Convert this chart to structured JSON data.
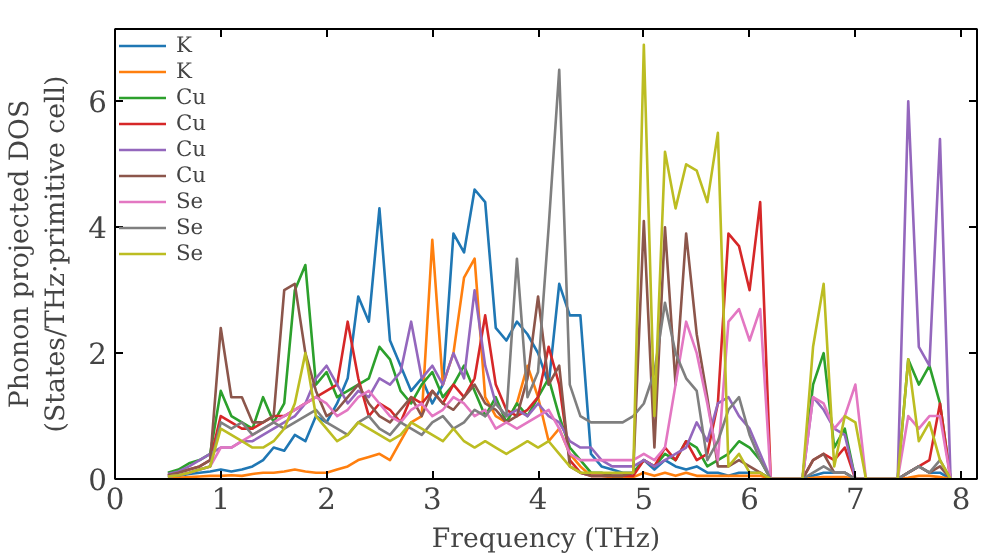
{
  "chart_data": {
    "type": "line",
    "xlabel": "Frequency (THz)",
    "ylabel": "Phonon projected DOS\n(States/THz·primitive cell)",
    "xlim": [
      0,
      8.15
    ],
    "ylim": [
      0,
      7.15
    ],
    "xticks": [
      0,
      1,
      2,
      3,
      4,
      5,
      6,
      7,
      8
    ],
    "yticks": [
      0,
      2,
      4,
      6
    ],
    "legend": "top left",
    "x": [
      0.5,
      0.6,
      0.7,
      0.8,
      0.9,
      1.0,
      1.1,
      1.2,
      1.3,
      1.4,
      1.5,
      1.6,
      1.7,
      1.8,
      1.9,
      2.0,
      2.1,
      2.2,
      2.3,
      2.4,
      2.5,
      2.6,
      2.7,
      2.8,
      2.9,
      3.0,
      3.1,
      3.2,
      3.3,
      3.4,
      3.5,
      3.6,
      3.7,
      3.8,
      3.9,
      4.0,
      4.1,
      4.2,
      4.3,
      4.4,
      4.5,
      4.6,
      4.7,
      4.8,
      4.9,
      5.0,
      5.1,
      5.2,
      5.3,
      5.4,
      5.5,
      5.6,
      5.7,
      5.8,
      5.9,
      6.0,
      6.1,
      6.2,
      6.3,
      6.4,
      6.5,
      6.6,
      6.7,
      6.8,
      6.9,
      7.0,
      7.1,
      7.2,
      7.3,
      7.4,
      7.5,
      7.6,
      7.7,
      7.8,
      7.9
    ],
    "series": [
      {
        "name": "K",
        "color": "#1f77b4",
        "values": [
          0.03,
          0.05,
          0.08,
          0.1,
          0.12,
          0.15,
          0.12,
          0.15,
          0.2,
          0.3,
          0.5,
          0.45,
          0.7,
          0.6,
          1.0,
          0.9,
          1.2,
          1.6,
          2.9,
          2.5,
          4.3,
          2.2,
          1.8,
          1.4,
          1.6,
          1.2,
          1.5,
          3.9,
          3.6,
          4.6,
          4.4,
          2.4,
          2.2,
          2.5,
          2.3,
          2.0,
          1.5,
          3.1,
          2.6,
          2.6,
          0.4,
          0.2,
          0.15,
          0.1,
          0.1,
          0.3,
          0.15,
          0.3,
          0.2,
          0.15,
          0.2,
          0.1,
          0.1,
          0.05,
          0.1,
          0.1,
          0.1,
          0,
          0,
          0,
          0,
          0.05,
          0.1,
          0.1,
          0.1,
          0,
          0,
          0,
          0,
          0,
          0.1,
          0.2,
          0.1,
          0.1,
          0
        ]
      },
      {
        "name": "K",
        "color": "#ff7f0e",
        "values": [
          0.02,
          0.02,
          0.03,
          0.04,
          0.05,
          0.05,
          0.06,
          0.05,
          0.08,
          0.1,
          0.1,
          0.12,
          0.15,
          0.12,
          0.1,
          0.1,
          0.15,
          0.2,
          0.3,
          0.35,
          0.4,
          0.3,
          0.6,
          0.9,
          1.0,
          3.8,
          1.5,
          2.0,
          3.2,
          3.5,
          1.3,
          1.0,
          0.9,
          1.2,
          1.8,
          1.3,
          0.6,
          0.8,
          0.4,
          0.2,
          0.05,
          0.05,
          0.03,
          0.03,
          0.03,
          0.1,
          0.05,
          0.1,
          0.05,
          0.1,
          0.05,
          0.05,
          0.05,
          0.05,
          0.05,
          0.05,
          0.05,
          0,
          0,
          0,
          0,
          0.02,
          0.03,
          0.03,
          0.03,
          0,
          0,
          0,
          0,
          0,
          0.02,
          0.05,
          0.05,
          0.03,
          0
        ]
      },
      {
        "name": "Cu",
        "color": "#2ca02c",
        "values": [
          0.1,
          0.15,
          0.25,
          0.3,
          0.4,
          1.4,
          1.0,
          0.9,
          0.8,
          1.3,
          0.9,
          1.2,
          3.0,
          3.4,
          1.5,
          1.7,
          1.3,
          1.4,
          1.5,
          1.6,
          2.1,
          1.9,
          1.4,
          1.2,
          1.5,
          1.7,
          1.3,
          1.5,
          1.8,
          1.4,
          1.0,
          1.3,
          0.9,
          1.2,
          1.0,
          1.3,
          1.6,
          1.0,
          0.5,
          0.3,
          0.1,
          0.1,
          0.05,
          0.05,
          0.1,
          0.3,
          0.2,
          0.4,
          0.3,
          0.6,
          0.5,
          0.2,
          0.3,
          0.4,
          0.6,
          0.5,
          0.3,
          0,
          0,
          0,
          0,
          1.5,
          2.0,
          0.5,
          0.8,
          0,
          0,
          0,
          0,
          0,
          1.9,
          1.5,
          1.8,
          1.2,
          0
        ]
      },
      {
        "name": "Cu",
        "color": "#d62728",
        "values": [
          0.06,
          0.1,
          0.15,
          0.2,
          0.3,
          1.0,
          0.9,
          0.8,
          0.8,
          0.9,
          1.0,
          1.0,
          1.1,
          1.2,
          1.3,
          1.4,
          1.5,
          2.5,
          1.6,
          1.0,
          1.2,
          1.1,
          0.9,
          1.3,
          1.2,
          1.4,
          1.2,
          1.5,
          1.3,
          1.6,
          2.6,
          1.5,
          1.1,
          1.0,
          1.1,
          1.3,
          2.1,
          1.5,
          0.3,
          0.1,
          0.05,
          0.05,
          0.05,
          0.05,
          0.05,
          0.3,
          0.2,
          0.5,
          0.3,
          0.6,
          0.3,
          0.4,
          1.2,
          3.9,
          3.7,
          3.0,
          4.4,
          0,
          0,
          0,
          0,
          0.3,
          0.4,
          0.3,
          0.5,
          0,
          0,
          0,
          0,
          0,
          0.1,
          0.2,
          0.3,
          1.2,
          0
        ]
      },
      {
        "name": "Cu",
        "color": "#9467bd",
        "values": [
          0.08,
          0.12,
          0.2,
          0.3,
          0.4,
          0.5,
          0.5,
          0.6,
          0.6,
          0.7,
          0.8,
          0.9,
          1.0,
          1.2,
          1.6,
          1.8,
          1.5,
          1.2,
          1.4,
          1.3,
          1.6,
          1.5,
          1.7,
          2.5,
          1.6,
          1.8,
          1.5,
          2.0,
          1.6,
          3.0,
          1.8,
          1.2,
          1.0,
          1.1,
          1.0,
          1.2,
          1.0,
          0.9,
          0.6,
          0.5,
          0.5,
          0.3,
          0.2,
          0.2,
          0.2,
          0.3,
          0.2,
          0.3,
          0.4,
          0.5,
          0.9,
          0.6,
          1.2,
          1.3,
          1.0,
          0.8,
          0.4,
          0,
          0,
          0,
          0,
          1.3,
          1.1,
          0.8,
          0.7,
          0,
          0,
          0,
          0,
          0,
          6.0,
          2.1,
          1.8,
          5.4,
          0
        ]
      },
      {
        "name": "Cu",
        "color": "#8c564b",
        "values": [
          0.06,
          0.1,
          0.15,
          0.2,
          0.3,
          2.4,
          1.3,
          1.3,
          0.9,
          0.9,
          1.0,
          3.0,
          3.1,
          2.0,
          1.4,
          1.0,
          1.1,
          1.3,
          1.5,
          1.2,
          1.0,
          0.9,
          1.1,
          1.3,
          1.0,
          1.4,
          1.2,
          1.1,
          1.3,
          1.5,
          1.2,
          1.1,
          0.9,
          1.0,
          1.6,
          2.9,
          1.5,
          1.8,
          0.2,
          0.1,
          0.05,
          0.05,
          0.05,
          0.05,
          0.1,
          4.1,
          0.5,
          4.0,
          1.5,
          3.9,
          2.3,
          1.3,
          0.2,
          0.2,
          0.3,
          0.2,
          0.1,
          0,
          0,
          0,
          0,
          0.3,
          0.4,
          0.1,
          0.1,
          0,
          0,
          0,
          0,
          0,
          0.1,
          0.2,
          0.1,
          0.2,
          0
        ]
      },
      {
        "name": "Se",
        "color": "#e377c2",
        "values": [
          0.04,
          0.06,
          0.1,
          0.15,
          0.2,
          0.5,
          0.5,
          0.6,
          0.7,
          0.8,
          0.9,
          1.0,
          1.1,
          1.2,
          1.3,
          1.2,
          1.0,
          1.1,
          1.3,
          1.4,
          1.2,
          1.0,
          0.9,
          1.1,
          1.2,
          1.0,
          1.1,
          1.3,
          1.2,
          1.0,
          1.1,
          0.8,
          0.9,
          0.8,
          0.9,
          1.0,
          1.1,
          0.8,
          0.4,
          0.3,
          0.3,
          0.3,
          0.3,
          0.3,
          0.3,
          0.4,
          0.3,
          0.5,
          1.5,
          2.5,
          2.0,
          1.2,
          0.3,
          2.5,
          2.7,
          2.2,
          2.7,
          0,
          0,
          0,
          0,
          1.3,
          1.2,
          0.8,
          1.0,
          1.5,
          0,
          0,
          0,
          0,
          1.0,
          0.8,
          1.0,
          1.0,
          0
        ]
      },
      {
        "name": "Se",
        "color": "#7f7f7f",
        "values": [
          0.04,
          0.06,
          0.1,
          0.15,
          0.2,
          0.9,
          0.8,
          0.9,
          0.7,
          0.8,
          0.9,
          0.8,
          0.9,
          1.0,
          1.1,
          0.9,
          0.8,
          0.7,
          0.9,
          1.0,
          0.8,
          0.7,
          0.9,
          0.8,
          0.7,
          0.9,
          1.0,
          0.8,
          0.9,
          1.1,
          1.0,
          1.2,
          1.0,
          3.5,
          1.3,
          1.7,
          4.0,
          6.5,
          1.5,
          1.0,
          0.9,
          0.9,
          0.9,
          0.9,
          1.0,
          1.2,
          1.7,
          2.8,
          2.0,
          1.6,
          1.4,
          0.3,
          0.6,
          1.1,
          1.3,
          0.7,
          0.3,
          0,
          0,
          0,
          0,
          0.1,
          0.2,
          0.1,
          0.1,
          0,
          0,
          0,
          0,
          0,
          0.1,
          0.2,
          0.1,
          0.3,
          0
        ]
      },
      {
        "name": "Se",
        "color": "#bcbd22",
        "values": [
          0.04,
          0.06,
          0.1,
          0.15,
          0.2,
          0.8,
          0.7,
          0.6,
          0.5,
          0.5,
          0.6,
          0.8,
          1.2,
          2.0,
          1.0,
          0.8,
          0.6,
          0.7,
          0.9,
          0.8,
          0.7,
          0.6,
          0.7,
          0.9,
          0.8,
          0.7,
          0.6,
          0.8,
          0.6,
          0.5,
          0.6,
          0.5,
          0.4,
          0.5,
          0.6,
          0.5,
          0.6,
          0.4,
          0.2,
          0.1,
          0.1,
          0.1,
          0.1,
          0.1,
          0.1,
          6.9,
          1.0,
          5.2,
          4.3,
          5.0,
          4.9,
          4.4,
          5.5,
          0.2,
          0.4,
          0.1,
          0.1,
          0,
          0,
          0,
          0,
          2.1,
          3.1,
          0.2,
          1.0,
          0.9,
          0,
          0,
          0,
          0,
          1.9,
          0.6,
          0.9,
          0.3,
          0
        ]
      }
    ]
  }
}
